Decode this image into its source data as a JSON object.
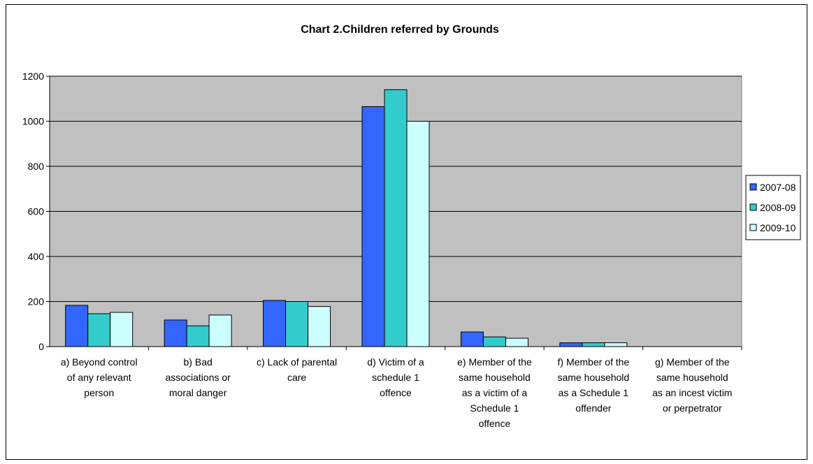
{
  "chart_data": {
    "type": "bar",
    "title": "Chart 2.Children referred by Grounds",
    "xlabel": "",
    "ylabel": "",
    "ylim": [
      0,
      1200
    ],
    "yticks": [
      0,
      200,
      400,
      600,
      800,
      1000,
      1200
    ],
    "grid": true,
    "legend_position": "right",
    "categories": [
      [
        "a) Beyond control",
        "of any relevant",
        "person"
      ],
      [
        "b) Bad",
        "associations or",
        "moral danger"
      ],
      [
        "c) Lack of parental",
        "care"
      ],
      [
        "d) Victim of a",
        "schedule 1",
        "offence"
      ],
      [
        "e) Member of the",
        "same household",
        "as a victim of a",
        "Schedule 1",
        "offence"
      ],
      [
        "f) Member of the",
        "same household",
        "as a  Schedule 1",
        "offender"
      ],
      [
        "g) Member of the",
        "same household",
        "as an incest victim",
        "or perpetrator"
      ]
    ],
    "series": [
      {
        "name": "2007-08",
        "color": "#3366ff",
        "values": [
          183,
          118,
          205,
          1065,
          65,
          17,
          0
        ]
      },
      {
        "name": "2008-09",
        "color": "#33cccc",
        "values": [
          146,
          92,
          200,
          1140,
          43,
          17,
          0
        ]
      },
      {
        "name": "2009-10",
        "color": "#ccffff",
        "values": [
          152,
          140,
          178,
          1000,
          37,
          17,
          0
        ]
      }
    ],
    "plot_background": "#c0c0c0"
  }
}
